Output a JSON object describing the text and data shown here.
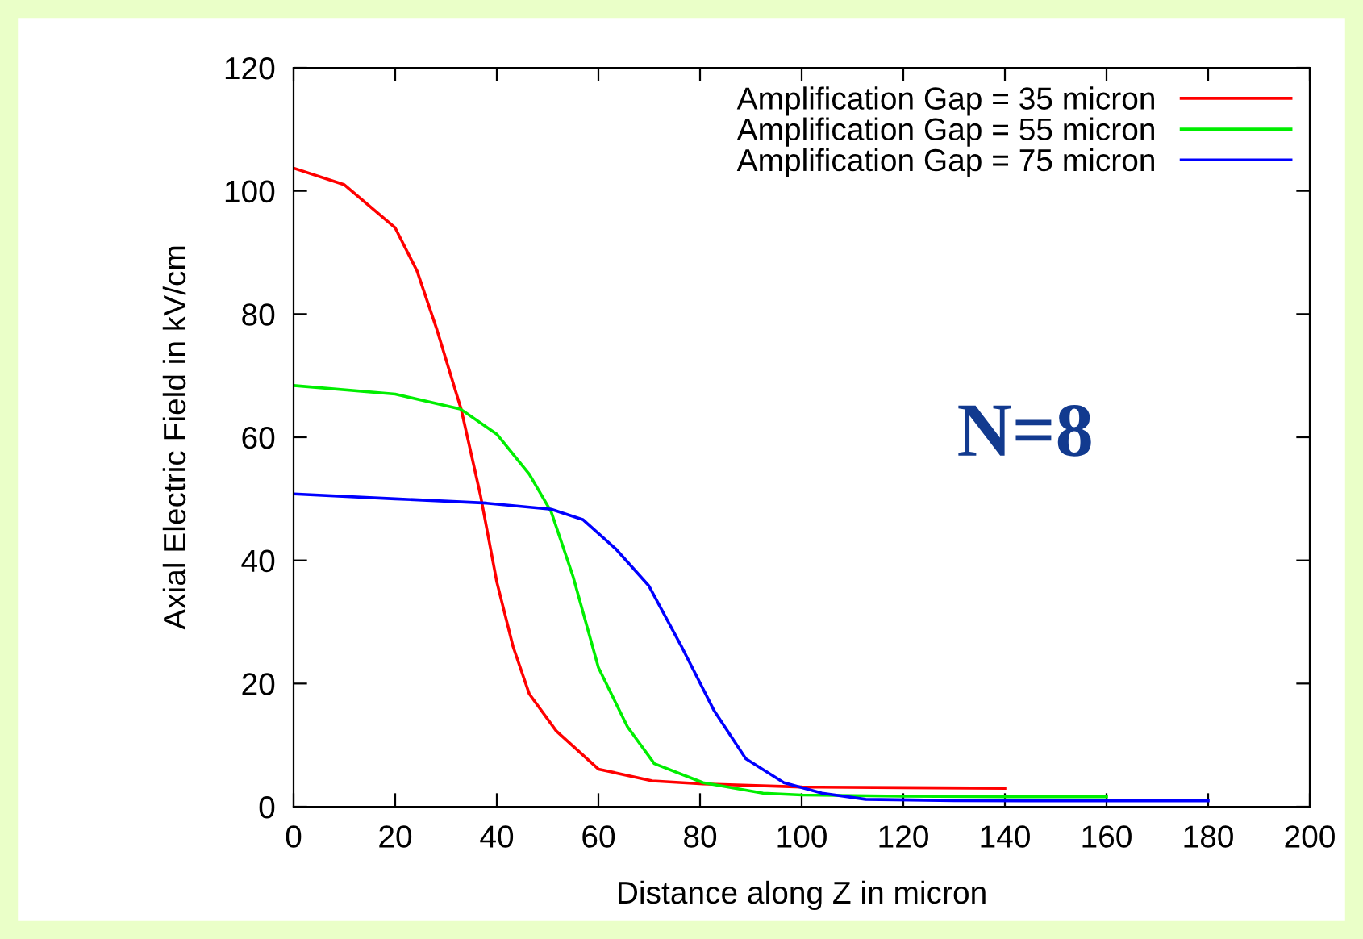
{
  "chart_data": {
    "type": "line",
    "xlabel": "Distance along Z in micron",
    "ylabel": "Axial Electric Field in kV/cm",
    "xlim": [
      0,
      200
    ],
    "ylim": [
      0,
      120
    ],
    "xticks": [
      0,
      20,
      40,
      60,
      80,
      100,
      120,
      140,
      160,
      180,
      200
    ],
    "yticks": [
      0,
      20,
      40,
      60,
      80,
      100,
      120
    ],
    "grid": false,
    "legend": "top right",
    "marker": "none",
    "line_style": "solid",
    "annotations": [
      "N=8"
    ],
    "series": [
      {
        "name": "Amplification Gap = 35 micron",
        "color": "#ff0000",
        "x": [
          0,
          10,
          20,
          24.3,
          28.2,
          33,
          36.8,
          40,
          43.2,
          46.4,
          51.7,
          60,
          70.6,
          80.6,
          100,
          120,
          140
        ],
        "values": [
          103.7,
          101,
          94,
          87,
          77.5,
          64.5,
          50.5,
          36.5,
          26,
          18.3,
          12.3,
          6.1,
          4.2,
          3.7,
          3.2,
          3.1,
          3.0
        ]
      },
      {
        "name": "Amplification Gap = 55 micron",
        "color": "#00ee00",
        "x": [
          0,
          20,
          32.8,
          40,
          46.4,
          50.7,
          55,
          60,
          65.7,
          71,
          80.6,
          92.4,
          100,
          120,
          140,
          160
        ],
        "values": [
          68.4,
          67,
          64.6,
          60.5,
          54,
          47.9,
          37.4,
          22.6,
          13,
          7,
          3.9,
          2.2,
          1.9,
          1.7,
          1.6,
          1.6
        ]
      },
      {
        "name": "Amplification Gap = 75 micron",
        "color": "#0000ff",
        "x": [
          0,
          20,
          38,
          50.7,
          57,
          63.5,
          69.9,
          76.3,
          82.7,
          89,
          96.5,
          104,
          112.6,
          130,
          150,
          180
        ],
        "values": [
          50.8,
          50,
          49.3,
          48.3,
          46.6,
          41.8,
          35.9,
          26.1,
          15.7,
          7.8,
          3.9,
          2.2,
          1.2,
          1.0,
          0.95,
          0.95
        ]
      }
    ]
  }
}
